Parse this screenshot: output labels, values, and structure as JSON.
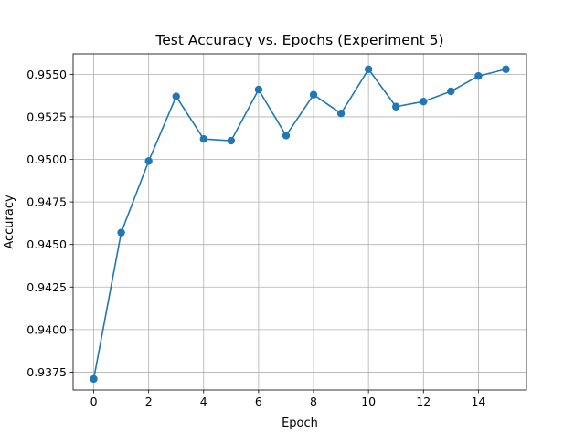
{
  "chart_data": {
    "type": "line",
    "title": "Test Accuracy vs. Epochs (Experiment 5)",
    "xlabel": "Epoch",
    "ylabel": "Accuracy",
    "xlim": [
      -0.75,
      15.75
    ],
    "ylim": [
      0.93645,
      0.9562
    ],
    "x_ticks": [
      0,
      2,
      4,
      6,
      8,
      10,
      12,
      14
    ],
    "y_ticks": [
      0.9375,
      0.94,
      0.9425,
      0.945,
      0.9475,
      0.95,
      0.9525,
      0.955
    ],
    "grid": true,
    "legend": "none",
    "series": [
      {
        "color": "#1f77b4",
        "marker": "circle",
        "x": [
          0,
          1,
          2,
          3,
          4,
          5,
          6,
          7,
          8,
          9,
          10,
          11,
          12,
          13,
          14,
          15
        ],
        "values": [
          0.9371,
          0.9457,
          0.9499,
          0.9537,
          0.9512,
          0.9511,
          0.9541,
          0.9514,
          0.9538,
          0.9527,
          0.9553,
          0.9531,
          0.9534,
          0.954,
          0.9549,
          0.9553
        ]
      }
    ]
  }
}
